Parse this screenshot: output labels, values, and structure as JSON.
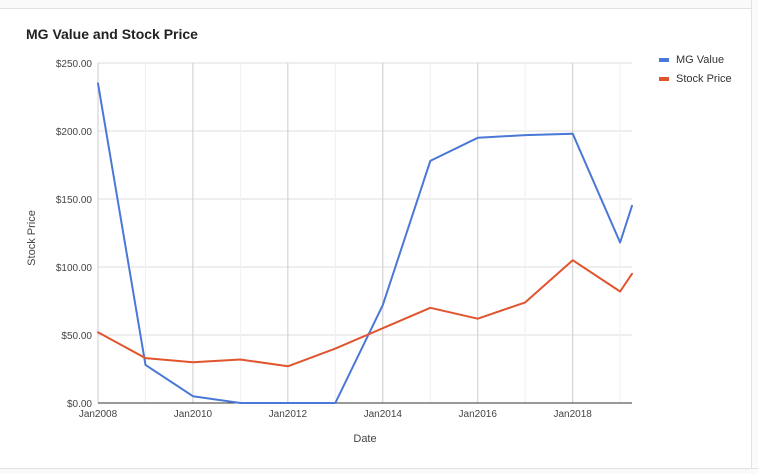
{
  "chart_data": {
    "type": "line",
    "title": "MG Value and Stock Price",
    "xlabel": "Date",
    "ylabel": "Stock Price",
    "ylim": [
      0,
      250
    ],
    "yticks": [
      "$0.00",
      "$50.00",
      "$100.00",
      "$150.00",
      "$200.00",
      "$250.00"
    ],
    "xticks": [
      "Jan2008",
      "Jan2010",
      "Jan2012",
      "Jan2014",
      "Jan2016",
      "Jan2018"
    ],
    "x": [
      2008,
      2009,
      2010,
      2011,
      2012,
      2013,
      2014,
      2015,
      2016,
      2017,
      2018,
      2019,
      2019.25
    ],
    "series": [
      {
        "name": "MG Value",
        "color": "#4a78d6",
        "values": [
          235,
          28,
          5,
          0,
          0,
          0,
          72,
          178,
          195,
          197,
          198,
          118,
          145
        ]
      },
      {
        "name": "Stock Price",
        "color": "#e0542e",
        "values": [
          52,
          33,
          30,
          32,
          27,
          40,
          55,
          70,
          62,
          74,
          105,
          82,
          95
        ]
      }
    ],
    "grid": true,
    "legend_position": "top-right"
  }
}
